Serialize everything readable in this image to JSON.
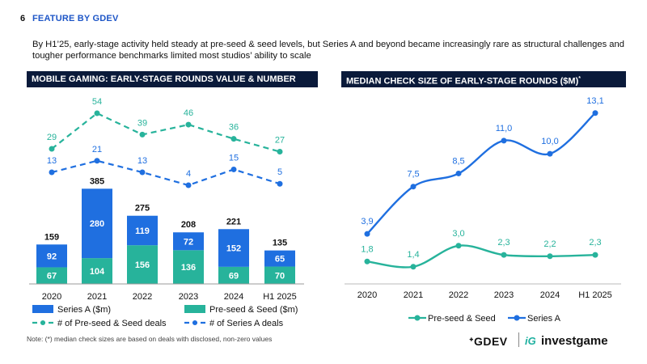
{
  "header": {
    "page_number": "6",
    "section_title": "FEATURE BY GDEV",
    "summary": "By H1’25, early-stage activity held steady at pre-seed & seed levels, but Series A and beyond became increasingly rare as structural challenges and tougher performance benchmarks limited most studios’ ability to scale"
  },
  "left_panel": {
    "title": "MOBILE GAMING: EARLY-STAGE ROUNDS VALUE & NUMBER"
  },
  "right_panel": {
    "title": "MEDIAN CHECK SIZE OF EARLY-STAGE ROUNDS ($M)",
    "title_mark": "*"
  },
  "footer": {
    "note": "Note: (*) median check sizes are based on deals with disclosed, non-zero values",
    "logo_gdev": "ᐩGDEV",
    "logo_investgame_mark": "iG",
    "logo_investgame": "investgame"
  },
  "colors": {
    "series_a": "#1f6fe0",
    "preseed": "#27b39b",
    "title_bar": "#0a1a3a"
  },
  "chart_data": [
    {
      "type": "bar",
      "stacked": true,
      "categories": [
        "2020",
        "2021",
        "2022",
        "2023",
        "2024",
        "H1 2025"
      ],
      "series": [
        {
          "name": "Pre-seed & Seed ($m)",
          "values": [
            67,
            104,
            156,
            136,
            69,
            70
          ],
          "color": "#27b39b"
        },
        {
          "name": "Series A ($m)",
          "values": [
            92,
            280,
            119,
            72,
            152,
            65
          ],
          "color": "#1f6fe0"
        }
      ],
      "totals": [
        159,
        385,
        275,
        208,
        221,
        135
      ],
      "lines": [
        {
          "name": "# of Pre-seed & Seed deals",
          "values": [
            29,
            54,
            39,
            46,
            36,
            27
          ],
          "color": "#27b39b",
          "style": "dashed"
        },
        {
          "name": "# of Series A deals",
          "values": [
            13,
            21,
            13,
            4,
            15,
            5
          ],
          "color": "#1f6fe0",
          "style": "dashed"
        }
      ],
      "legend": "bottom"
    },
    {
      "type": "line",
      "categories": [
        "2020",
        "2021",
        "2022",
        "2023",
        "2024",
        "H1 2025"
      ],
      "series": [
        {
          "name": "Pre-seed & Seed",
          "values": [
            1.8,
            1.4,
            3.0,
            2.3,
            2.2,
            2.3
          ],
          "labels": [
            "1,8",
            "1,4",
            "3,0",
            "2,3",
            "2,2",
            "2,3"
          ],
          "color": "#27b39b"
        },
        {
          "name": "Series A",
          "values": [
            3.9,
            7.5,
            8.5,
            11.0,
            10.0,
            13.1
          ],
          "labels": [
            "3,9",
            "7,5",
            "8,5",
            "11,0",
            "10,0",
            "13,1"
          ],
          "color": "#1f6fe0"
        }
      ],
      "legend": "bottom"
    }
  ]
}
